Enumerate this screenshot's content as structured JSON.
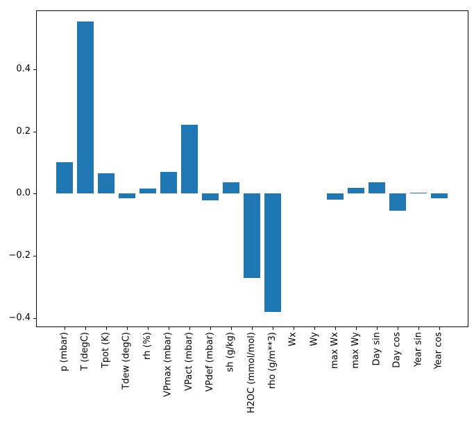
{
  "figure": {
    "background": "#ffffff",
    "spine_color": "#000000",
    "text_color": "#000000"
  },
  "chart_data": {
    "type": "bar",
    "title": "",
    "xlabel": "",
    "ylabel": "",
    "grid": false,
    "legend_position": "none",
    "bar_color": "#1f77b4",
    "categories": [
      "p (mbar)",
      "T (degC)",
      "Tpot (K)",
      "Tdew (degC)",
      "rh (%)",
      "VPmax (mbar)",
      "VPact (mbar)",
      "VPdef (mbar)",
      "sh (g/kg)",
      "H2OC (mmol/mol)",
      "rho (g/m**3)",
      "Wx",
      "Wy",
      "max Wx",
      "max Wy",
      "Day sin",
      "Day cos",
      "Year sin",
      "Year cos"
    ],
    "values": [
      0.102,
      0.555,
      0.066,
      -0.016,
      0.016,
      0.069,
      0.221,
      -0.021,
      0.036,
      -0.271,
      -0.381,
      0.0,
      0.0,
      -0.02,
      0.019,
      0.037,
      -0.056,
      0.004,
      -0.015
    ],
    "ylim": [
      -0.43,
      0.59
    ],
    "yticks": [
      -0.4,
      -0.2,
      0.0,
      0.2,
      0.4
    ],
    "ytick_labels": [
      "−0.4",
      "−0.2",
      "0.0",
      "0.2",
      "0.4"
    ]
  }
}
